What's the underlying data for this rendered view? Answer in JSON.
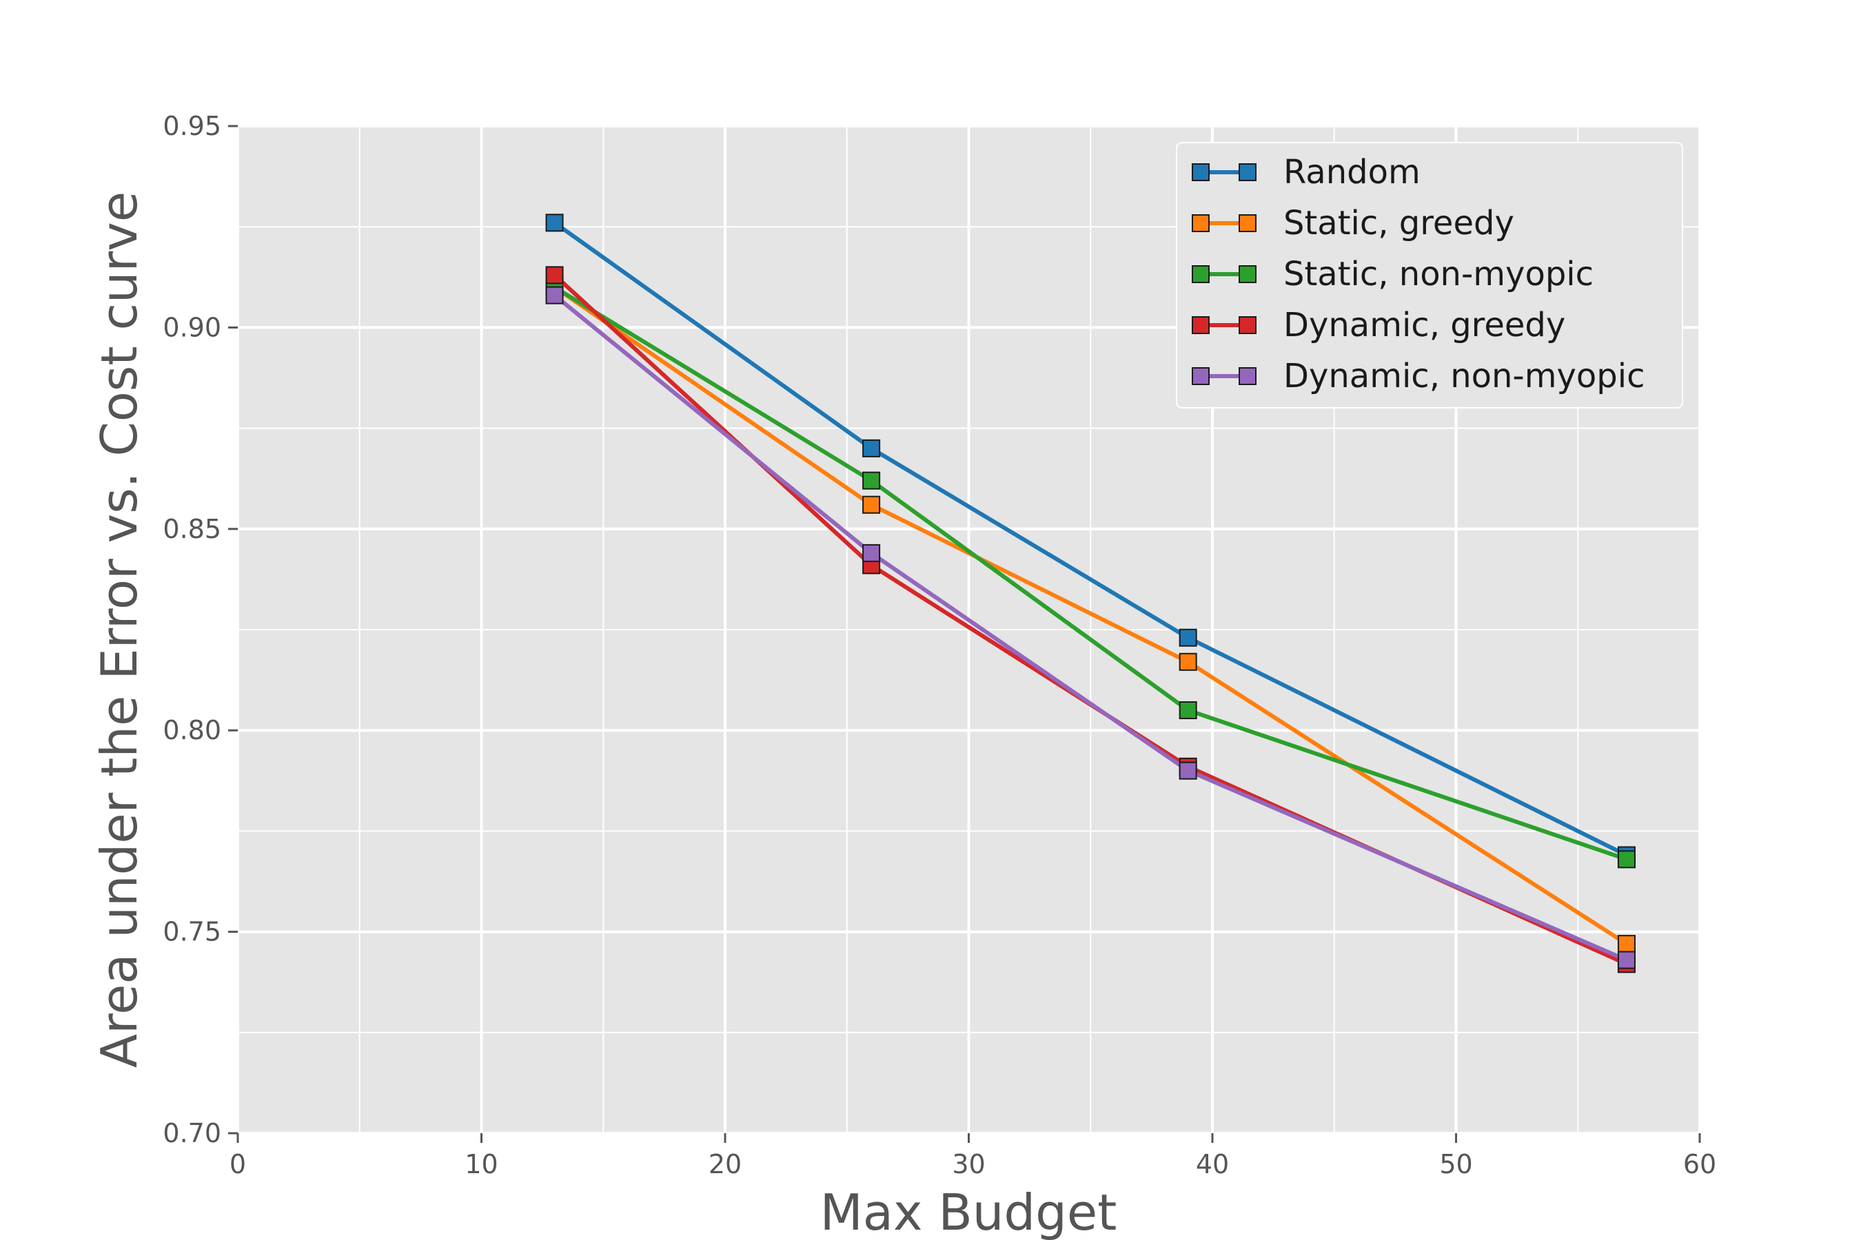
{
  "chart_data": {
    "type": "line",
    "title": "",
    "xlabel": "Max Budget",
    "ylabel": "Area under the Error vs. Cost curve",
    "xlim": [
      0,
      60
    ],
    "ylim": [
      0.7,
      0.95
    ],
    "xticks": [
      0,
      10,
      20,
      30,
      40,
      50,
      60
    ],
    "xtick_labels": [
      "0",
      "10",
      "20",
      "30",
      "40",
      "50",
      "60"
    ],
    "xminor": [
      5,
      15,
      25,
      35,
      45,
      55
    ],
    "yticks": [
      0.7,
      0.75,
      0.8,
      0.85,
      0.9,
      0.95
    ],
    "ytick_labels": [
      "0.70",
      "0.75",
      "0.80",
      "0.85",
      "0.90",
      "0.95"
    ],
    "yminor": [
      0.725,
      0.775,
      0.825,
      0.875,
      0.925
    ],
    "grid": true,
    "legend_position": "top-right",
    "x": [
      13,
      26,
      39,
      57
    ],
    "series": [
      {
        "name": "Random",
        "color": "#1f77b4",
        "values": [
          0.926,
          0.87,
          0.823,
          0.769
        ]
      },
      {
        "name": "Static, greedy",
        "color": "#ff7f0e",
        "values": [
          0.91,
          0.856,
          0.817,
          0.747
        ]
      },
      {
        "name": "Static, non-myopic",
        "color": "#2ca02c",
        "values": [
          0.91,
          0.862,
          0.805,
          0.768
        ]
      },
      {
        "name": "Dynamic, greedy",
        "color": "#d62728",
        "values": [
          0.913,
          0.841,
          0.791,
          0.742
        ]
      },
      {
        "name": "Dynamic, non-myopic",
        "color": "#9467bd",
        "values": [
          0.908,
          0.844,
          0.79,
          0.743
        ]
      }
    ]
  }
}
